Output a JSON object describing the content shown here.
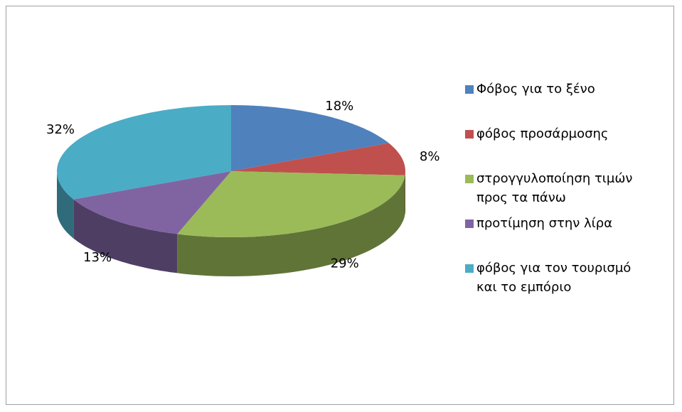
{
  "chart_data": {
    "type": "pie3d",
    "categories": [
      "Φόβος για το ξένο",
      "φόβος προσάρμοσης",
      "στρογγυλοποίηση τιμών προς τα πάνω",
      "προτίμηση στην λίρα",
      "φόβος για τον τουρισμό και το εμπόριο"
    ],
    "values": [
      18,
      8,
      29,
      13,
      32
    ],
    "value_labels": [
      "18%",
      "8%",
      "29%",
      "13%",
      "32%"
    ],
    "colors": [
      "#4f81bd",
      "#c0504d",
      "#9bbb59",
      "#8064a2",
      "#4bacc6"
    ],
    "legend": "right"
  }
}
